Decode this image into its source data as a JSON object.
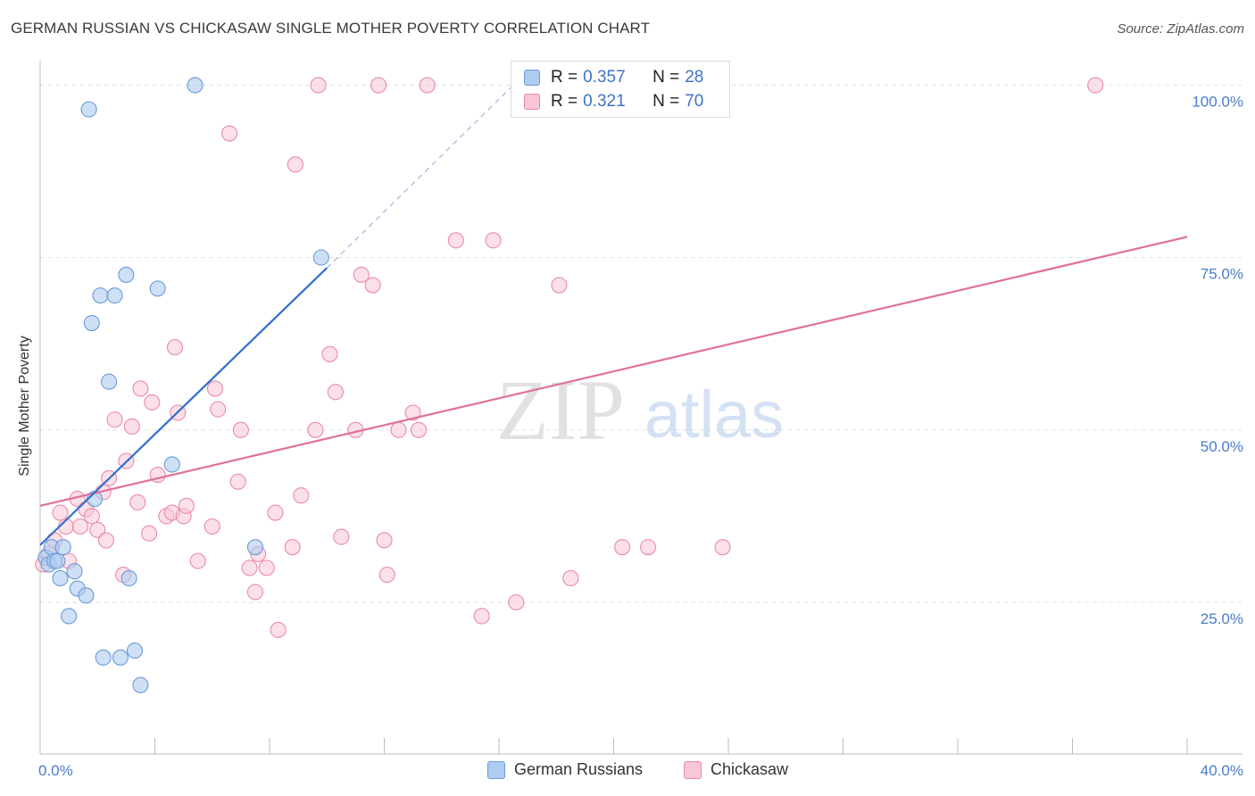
{
  "title": "GERMAN RUSSIAN VS CHICKASAW SINGLE MOTHER POVERTY CORRELATION CHART",
  "source": "Source: ZipAtlas.com",
  "watermark": {
    "zip": "ZIP",
    "atlas": "atlas"
  },
  "legend_top": {
    "rows": [
      {
        "r_label": "R = ",
        "r_value": "0.357",
        "n_label": "N = ",
        "n_value": "28"
      },
      {
        "r_label": "R = ",
        "r_value": "0.321",
        "n_label": "N = ",
        "n_value": "70"
      }
    ]
  },
  "legend_bottom": [
    {
      "label": "German Russians"
    },
    {
      "label": "Chickasaw"
    }
  ],
  "colors": {
    "blue_fill": "#aecbf0",
    "blue_stroke": "#6b9bd8",
    "blue_line": "#2f6fd0",
    "pink_fill": "#f8c6d6",
    "pink_stroke": "#e98aaa",
    "pink_line": "#e0709a",
    "tick_text": "#4a7cc7"
  },
  "chart_data": {
    "type": "scatter",
    "title": "GERMAN RUSSIAN VS CHICKASAW SINGLE MOTHER POVERTY CORRELATION CHART",
    "xlabel": "",
    "ylabel": "Single Mother Poverty",
    "xlim": [
      0,
      40
    ],
    "ylim": [
      3,
      102
    ],
    "x_ticks": [
      0,
      40
    ],
    "x_tick_labels": [
      "0.0%",
      "40.0%"
    ],
    "y_ticks": [
      25,
      50,
      75,
      100
    ],
    "y_tick_labels": [
      "25.0%",
      "50.0%",
      "75.0%",
      "100.0%"
    ],
    "grid": "horizontal dashed",
    "legend_position": "top-center",
    "series": [
      {
        "name": "German Russians",
        "color": "#aecbf0",
        "points": [
          [
            0.2,
            31.5
          ],
          [
            0.3,
            30.5
          ],
          [
            0.4,
            33.0
          ],
          [
            0.5,
            31.0
          ],
          [
            0.6,
            31.0
          ],
          [
            0.7,
            28.5
          ],
          [
            0.8,
            33.0
          ],
          [
            1.0,
            23.0
          ],
          [
            1.2,
            29.5
          ],
          [
            1.3,
            27.0
          ],
          [
            1.6,
            26.0
          ],
          [
            1.7,
            96.5
          ],
          [
            1.8,
            65.5
          ],
          [
            1.9,
            40.0
          ],
          [
            2.1,
            69.5
          ],
          [
            2.2,
            17.0
          ],
          [
            2.4,
            57.0
          ],
          [
            2.6,
            69.5
          ],
          [
            2.8,
            17.0
          ],
          [
            3.0,
            72.5
          ],
          [
            3.1,
            28.5
          ],
          [
            3.3,
            18.0
          ],
          [
            3.5,
            13.0
          ],
          [
            4.1,
            70.5
          ],
          [
            4.6,
            45.0
          ],
          [
            5.4,
            100.0
          ],
          [
            7.5,
            33.0
          ],
          [
            9.8,
            75.0
          ]
        ],
        "trend": {
          "x": [
            0,
            10
          ],
          "y": [
            33.3,
            73.5
          ],
          "dashed_extension": {
            "x": [
              10,
              16.5
            ],
            "y": [
              73.5,
              100
            ]
          }
        }
      },
      {
        "name": "Chickasaw",
        "color": "#f8c6d6",
        "points": [
          [
            0.1,
            30.5
          ],
          [
            0.3,
            32.0
          ],
          [
            0.5,
            34.0
          ],
          [
            0.7,
            38.0
          ],
          [
            0.9,
            36.0
          ],
          [
            1.0,
            31.0
          ],
          [
            1.3,
            40.0
          ],
          [
            1.4,
            36.0
          ],
          [
            1.6,
            38.5
          ],
          [
            1.8,
            37.5
          ],
          [
            2.0,
            35.5
          ],
          [
            2.2,
            41.0
          ],
          [
            2.3,
            34.0
          ],
          [
            2.4,
            43.0
          ],
          [
            2.6,
            51.5
          ],
          [
            2.9,
            29.0
          ],
          [
            3.0,
            45.5
          ],
          [
            3.2,
            50.5
          ],
          [
            3.4,
            39.5
          ],
          [
            3.5,
            56.0
          ],
          [
            3.8,
            35.0
          ],
          [
            3.9,
            54.0
          ],
          [
            4.1,
            43.5
          ],
          [
            4.4,
            37.5
          ],
          [
            4.6,
            38.0
          ],
          [
            4.7,
            62.0
          ],
          [
            4.8,
            52.5
          ],
          [
            5.0,
            37.5
          ],
          [
            5.1,
            39.0
          ],
          [
            5.5,
            31.0
          ],
          [
            6.1,
            56.0
          ],
          [
            6.2,
            53.0
          ],
          [
            6.0,
            36.0
          ],
          [
            6.6,
            93.0
          ],
          [
            6.9,
            42.5
          ],
          [
            7.0,
            50.0
          ],
          [
            7.3,
            30.0
          ],
          [
            7.5,
            26.5
          ],
          [
            7.6,
            32.0
          ],
          [
            7.9,
            30.0
          ],
          [
            8.2,
            38.0
          ],
          [
            8.3,
            21.0
          ],
          [
            8.9,
            88.5
          ],
          [
            8.8,
            33.0
          ],
          [
            9.1,
            40.5
          ],
          [
            9.6,
            50.0
          ],
          [
            10.1,
            61.0
          ],
          [
            10.3,
            55.5
          ],
          [
            10.5,
            34.5
          ],
          [
            11.0,
            50.0
          ],
          [
            11.2,
            72.5
          ],
          [
            11.6,
            71.0
          ],
          [
            11.8,
            100.0
          ],
          [
            12.0,
            34.0
          ],
          [
            12.1,
            29.0
          ],
          [
            12.5,
            50.0
          ],
          [
            13.0,
            52.5
          ],
          [
            13.2,
            50.0
          ],
          [
            13.5,
            100.0
          ],
          [
            14.5,
            77.5
          ],
          [
            15.4,
            23.0
          ],
          [
            15.8,
            77.5
          ],
          [
            16.6,
            25.0
          ],
          [
            18.1,
            71.0
          ],
          [
            18.5,
            28.5
          ],
          [
            20.3,
            33.0
          ],
          [
            21.2,
            33.0
          ],
          [
            23.8,
            33.0
          ],
          [
            36.8,
            100.0
          ],
          [
            9.7,
            100.0
          ]
        ],
        "trend": {
          "x": [
            0,
            40
          ],
          "y": [
            39.0,
            78.0
          ]
        }
      }
    ]
  }
}
